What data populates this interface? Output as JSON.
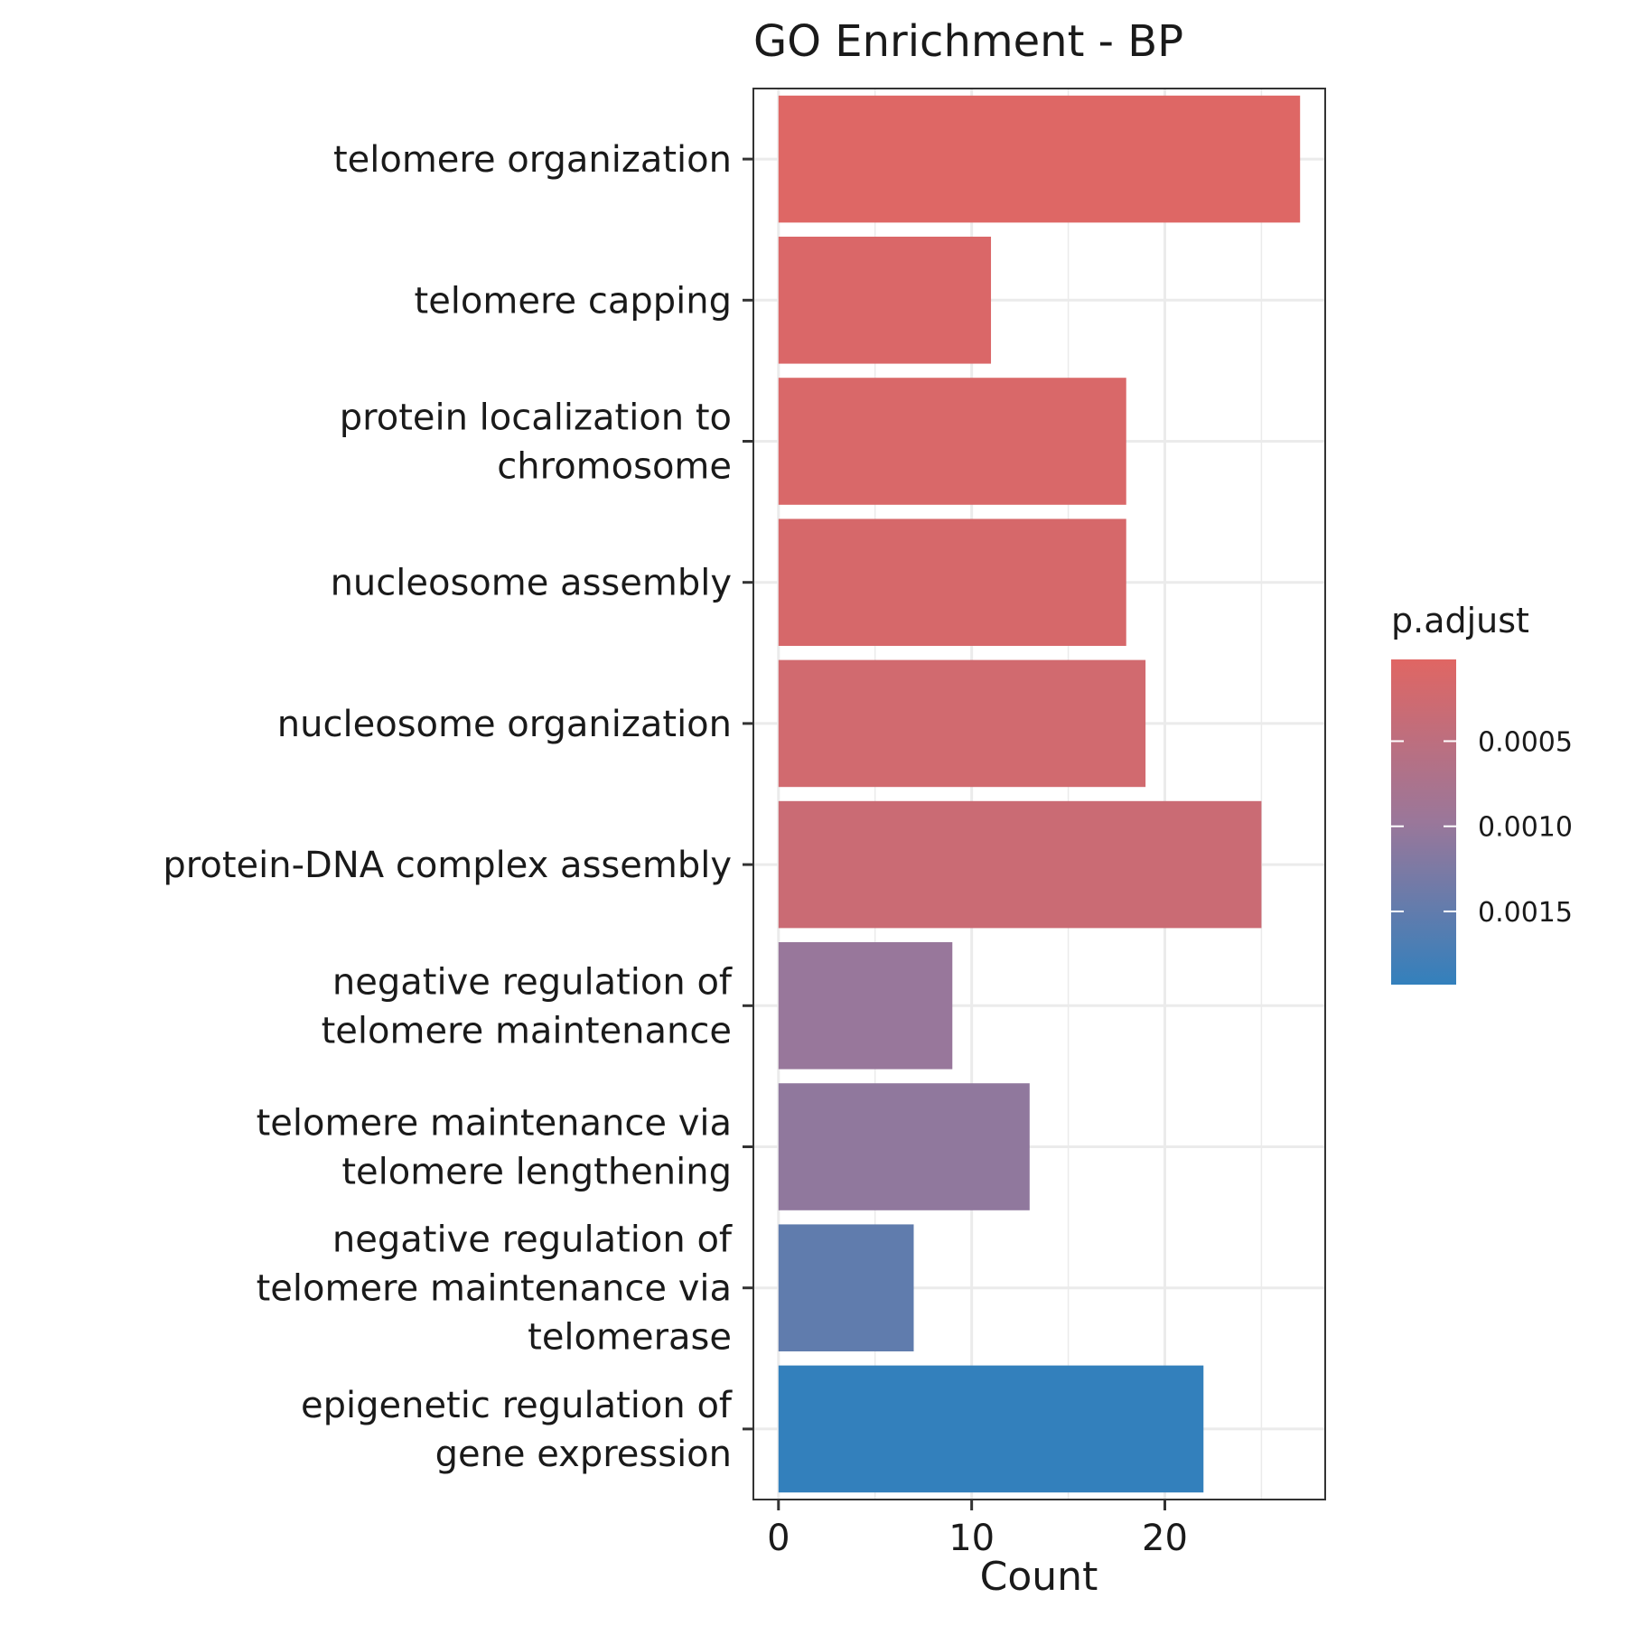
{
  "chart_data": {
    "type": "bar",
    "orientation": "horizontal",
    "title": "GO Enrichment - BP",
    "xlabel": "Count",
    "ylabel": "",
    "xlim": [
      -1.3,
      28.3
    ],
    "xticks": [
      0,
      10,
      20
    ],
    "grid": true,
    "legend_position": "right",
    "categories": [
      "telomere organization",
      "telomere capping",
      "protein localization to chromosome",
      "nucleosome assembly",
      "nucleosome organization",
      "protein-DNA complex assembly",
      "negative regulation of telomere maintenance",
      "telomere maintenance via telomere lengthening",
      "negative regulation of telomere maintenance via telomerase",
      "epigenetic regulation of gene expression"
    ],
    "category_lines": [
      [
        "telomere organization"
      ],
      [
        "telomere capping"
      ],
      [
        "protein localization to",
        "chromosome"
      ],
      [
        "nucleosome assembly"
      ],
      [
        "nucleosome organization"
      ],
      [
        "protein-DNA complex assembly"
      ],
      [
        "negative regulation of",
        "telomere maintenance"
      ],
      [
        "telomere maintenance via",
        "telomere lengthening"
      ],
      [
        "negative regulation of",
        "telomere maintenance via",
        "telomerase"
      ],
      [
        "epigenetic regulation of",
        "gene expression"
      ]
    ],
    "values": [
      27,
      11,
      18,
      18,
      19,
      25,
      9,
      13,
      7,
      22
    ],
    "p_adjust": [
      5e-05,
      0.0001,
      0.00012,
      0.00015,
      0.00022,
      0.00032,
      0.00099,
      0.00107,
      0.00151,
      0.00193
    ],
    "color_legend": {
      "title": "p.adjust",
      "range": [
        2e-05,
        0.00193
      ],
      "ticks": [
        0.0005,
        0.001,
        0.0015
      ],
      "tick_labels": [
        "0.0005",
        "0.0010",
        "0.0015"
      ],
      "low_color": "#e06663",
      "mid_color": "#9a779a",
      "high_color": "#3380bc"
    }
  }
}
